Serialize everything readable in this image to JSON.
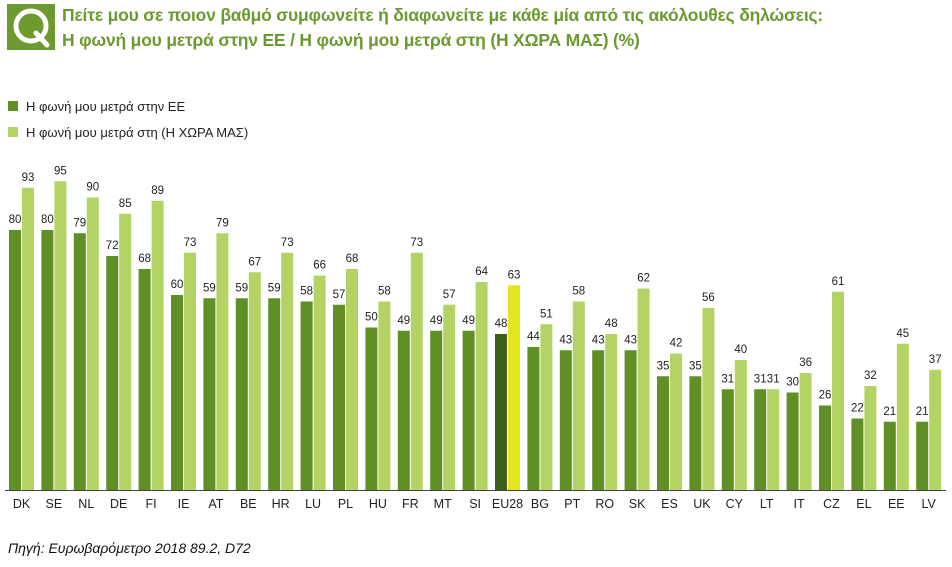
{
  "header": {
    "badge_letter": "Q",
    "title_line1": "Πείτε μου σε ποιον βαθμό συμφωνείτε ή διαφωνείτε με κάθε μία από τις ακόλουθες δηλώσεις:",
    "title_line2": "Η φωνή μου μετρά στην ΕΕ / Η  φωνή μου μετρά στη (Η ΧΩΡΑ ΜΑΣ) (%)"
  },
  "colors": {
    "eu_series": "#5f8f25",
    "country_series": "#b3d465",
    "eu28_eu": "#3d5d1b",
    "eu28_country": "#e2e51f",
    "title": "#6c9a2e"
  },
  "source": "Πηγή: Ευρωβαρόμετρο 2018 89.2, D72",
  "chart_data": {
    "type": "bar",
    "title": "Η φωνή μου μετρά στην ΕΕ / Η  φωνή μου μετρά στη (Η ΧΩΡΑ ΜΑΣ) (%)",
    "xlabel": "",
    "ylabel": "",
    "ylim": [
      0,
      100
    ],
    "grid": false,
    "legend": "top-left",
    "categories": [
      "DK",
      "SE",
      "NL",
      "DE",
      "FI",
      "IE",
      "AT",
      "BE",
      "HR",
      "LU",
      "PL",
      "HU",
      "FR",
      "MT",
      "SI",
      "EU28",
      "BG",
      "PT",
      "RO",
      "SK",
      "ES",
      "UK",
      "CY",
      "LT",
      "IT",
      "CZ",
      "EL",
      "EE",
      "LV"
    ],
    "series": [
      {
        "name": "Η φωνή μου μετρά στην ΕΕ",
        "values": [
          80,
          80,
          79,
          72,
          68,
          60,
          59,
          59,
          59,
          58,
          57,
          50,
          49,
          49,
          49,
          48,
          44,
          43,
          43,
          43,
          35,
          35,
          31,
          31,
          30,
          26,
          22,
          21,
          21
        ]
      },
      {
        "name": "Η  φωνή μου μετρά στη (Η ΧΩΡΑ ΜΑΣ)",
        "values": [
          93,
          95,
          90,
          85,
          89,
          73,
          79,
          67,
          73,
          66,
          68,
          58,
          73,
          57,
          64,
          63,
          51,
          58,
          48,
          62,
          42,
          56,
          40,
          31,
          36,
          61,
          32,
          45,
          37
        ]
      }
    ]
  }
}
